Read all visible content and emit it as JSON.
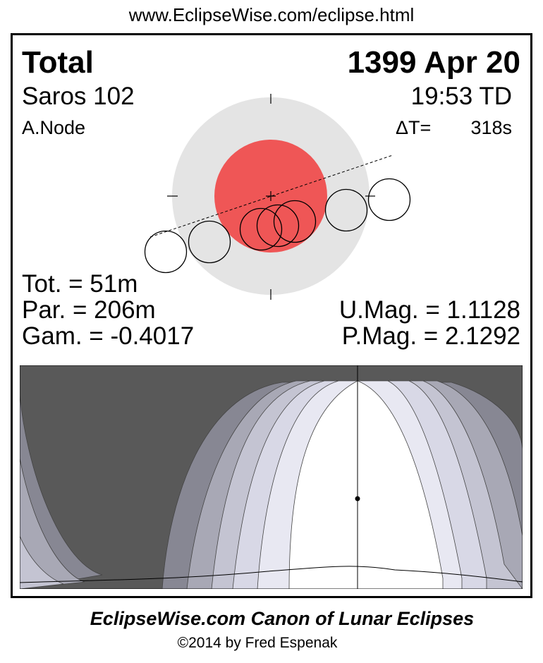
{
  "url": "www.EclipseWise.com/eclipse.html",
  "eclipse_type": "Total",
  "date": "1399 Apr 20",
  "saros": "Saros 102",
  "time": "19:53 TD",
  "node": "A.Node",
  "delta_t_label": "ΔT=",
  "delta_t_value": "318s",
  "stats": {
    "tot": "Tot. =  51m",
    "par": "Par. = 206m",
    "gam": "Gam. = -0.4017",
    "umag": "U.Mag. = 1.1128",
    "pmag": "P.Mag. = 2.1292"
  },
  "colors": {
    "umbra": "#ef5656",
    "penumbra": "#e4e4e4",
    "night": "#595959"
  },
  "footer": {
    "title": "EclipseWise.com Canon of Lunar Eclipses",
    "copyright": "©2014 by Fred Espenak"
  }
}
